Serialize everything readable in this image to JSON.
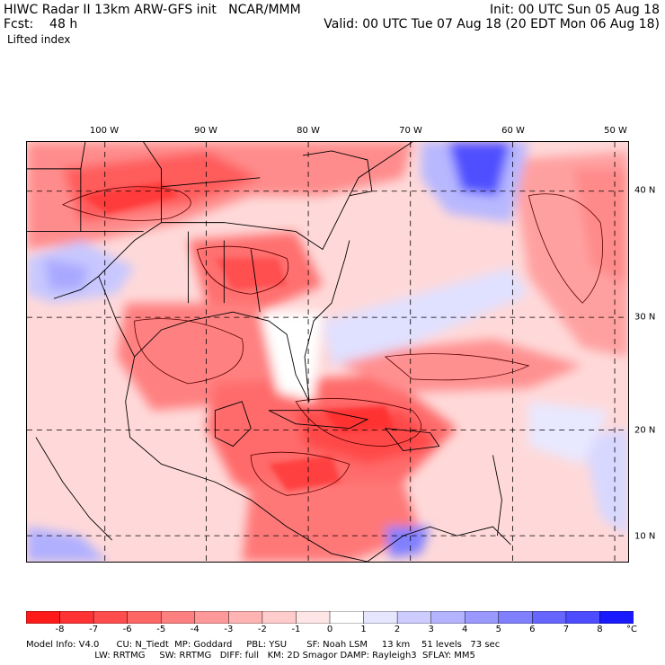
{
  "header": {
    "line1_left": "HIWC Radar II 13km ARW-GFS init   NCAR/MMM",
    "line1_right": "Init: 00 UTC Sun 05 Aug 18",
    "line2_left": "Fcst:    48 h",
    "line2_right": "Valid: 00 UTC Tue 07 Aug 18 (20 EDT Mon 06 Aug 18)",
    "field": "Lifted index"
  },
  "axes": {
    "lon_labels": [
      "100 W",
      "90 W",
      "80 W",
      "70 W",
      "60 W",
      "50 W"
    ],
    "lat_labels": [
      "40 N",
      "30 N",
      "20 N",
      "10 N"
    ]
  },
  "colorbar": {
    "ticks": [
      "-8",
      "-7",
      "-6",
      "-5",
      "-4",
      "-3",
      "-2",
      "-1",
      "0",
      "1",
      "2",
      "3",
      "4",
      "5",
      "6",
      "7",
      "8"
    ],
    "unit": "°C",
    "colors": [
      "#ff1a1a",
      "#ff3333",
      "#ff4d4d",
      "#ff6666",
      "#ff8080",
      "#ff9999",
      "#ffb3b3",
      "#ffcccc",
      "#ffe6e6",
      "#ffffff",
      "#e6e6ff",
      "#ccccff",
      "#b3b3ff",
      "#9999ff",
      "#8080ff",
      "#6666ff",
      "#4d4dff",
      "#1a1aff"
    ]
  },
  "footer": {
    "line1": "Model Info: V4.0      CU: N_Tiedt  MP: Goddard     PBL: YSU       SF: Noah LSM     13 km    51 levels   73 sec",
    "line2": "                        LW: RRTMG     SW: RRTMG   DIFF: full   KM: 2D Smagor DAMP: Rayleigh3  SFLAY: MM5"
  }
}
